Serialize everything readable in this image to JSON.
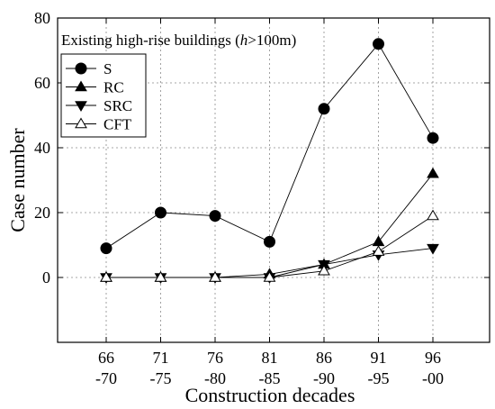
{
  "chart_data": {
    "type": "line",
    "annotation": {
      "prefix": "Existing high-rise buildings (",
      "italic": "h",
      "suffix": ">100m)"
    },
    "xlabel": "Construction decades",
    "ylabel": "Case number",
    "categories": [
      [
        "66",
        "-70"
      ],
      [
        "71",
        "-75"
      ],
      [
        "76",
        "-80"
      ],
      [
        "81",
        "-85"
      ],
      [
        "86",
        "-90"
      ],
      [
        "91",
        "-95"
      ],
      [
        "96",
        "-00"
      ]
    ],
    "ylim": [
      -20,
      80
    ],
    "yticks": [
      0,
      20,
      40,
      60,
      80
    ],
    "grid": true,
    "legend_position": "upper-left",
    "series": [
      {
        "name": "S",
        "marker": "circle",
        "values": [
          9,
          20,
          19,
          11,
          52,
          72,
          43
        ]
      },
      {
        "name": "RC",
        "marker": "triangle-up",
        "values": [
          0,
          0,
          0,
          1,
          4,
          11,
          32
        ]
      },
      {
        "name": "SRC",
        "marker": "triangle-down",
        "values": [
          0,
          0,
          0,
          0,
          4,
          7,
          9
        ]
      },
      {
        "name": "CFT",
        "marker": "triangle-open",
        "values": [
          0,
          0,
          0,
          0,
          2,
          8,
          19
        ]
      }
    ]
  }
}
